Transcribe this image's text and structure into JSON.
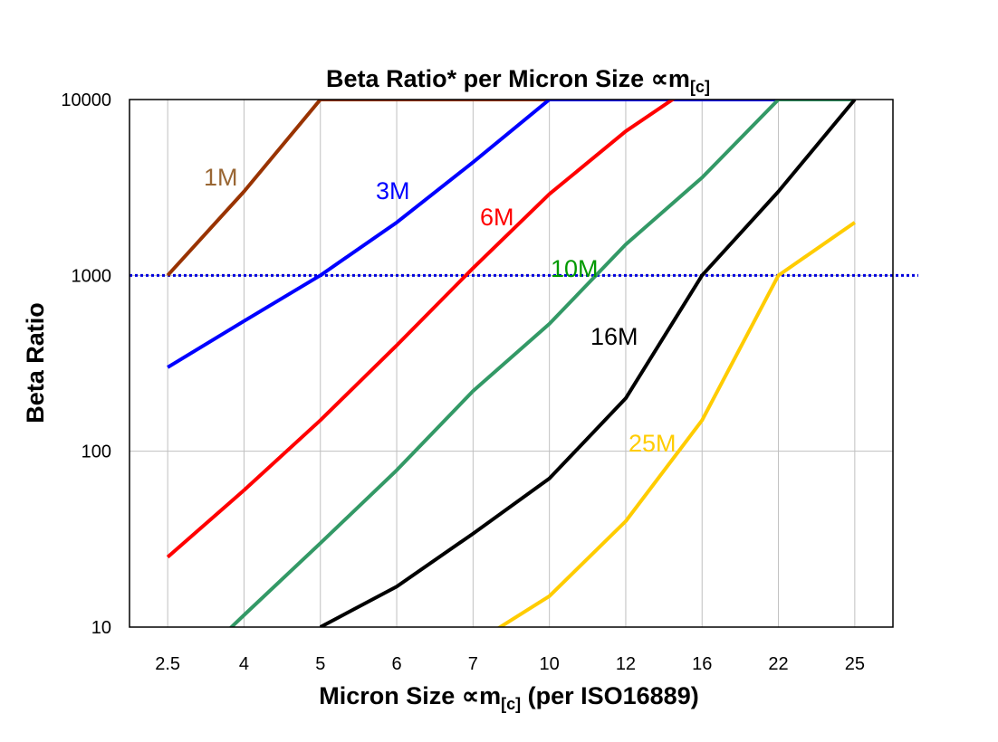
{
  "chart_data": {
    "type": "line",
    "title": "Beta Ratio* per Micron Size ∝m",
    "title_subscript": "[c]",
    "xlabel": "Micron Size ∝m",
    "xlabel_subscript": "[c]",
    "xlabel_suffix": " (per ISO16889)",
    "ylabel": "Beta Ratio",
    "y_scale": "log",
    "ylim": [
      10,
      10000
    ],
    "y_ticks": [
      "10",
      "100",
      "1000",
      "10000"
    ],
    "categories": [
      "2.5",
      "4",
      "5",
      "6",
      "7",
      "10",
      "12",
      "16",
      "22",
      "25"
    ],
    "grid": true,
    "reference_line": {
      "value": 1000,
      "style": "dotted",
      "color": "#0000DD"
    },
    "series": [
      {
        "name": "1M",
        "color": "#993300",
        "label_color": "#996633",
        "values": [
          1000,
          3000,
          10000,
          10000,
          10000,
          10000,
          10000,
          10000,
          10000,
          10000
        ]
      },
      {
        "name": "3M",
        "color": "#0000FF",
        "label_color": "#0000FF",
        "values": [
          300,
          550,
          1000,
          2000,
          4400,
          10000,
          10000,
          10000,
          10000,
          10000
        ]
      },
      {
        "name": "6M",
        "color": "#FF0000",
        "label_color": "#FF0000",
        "values": [
          25,
          60,
          150,
          400,
          1100,
          2900,
          6600,
          13000,
          null,
          null
        ]
      },
      {
        "name": "10M",
        "color": "#339966",
        "label_color": "#009900",
        "values": [
          4.5,
          11.7,
          30,
          78,
          220,
          530,
          1500,
          3600,
          10000,
          10000
        ]
      },
      {
        "name": "16M",
        "color": "#000000",
        "label_color": "#000000",
        "values": [
          null,
          null,
          10,
          17,
          34,
          70,
          200,
          1000,
          3000,
          10000
        ]
      },
      {
        "name": "25M",
        "color": "#FFCC00",
        "label_color": "#FFCC00",
        "values": [
          null,
          null,
          null,
          null,
          8,
          15,
          40,
          150,
          1000,
          2000
        ]
      }
    ]
  }
}
